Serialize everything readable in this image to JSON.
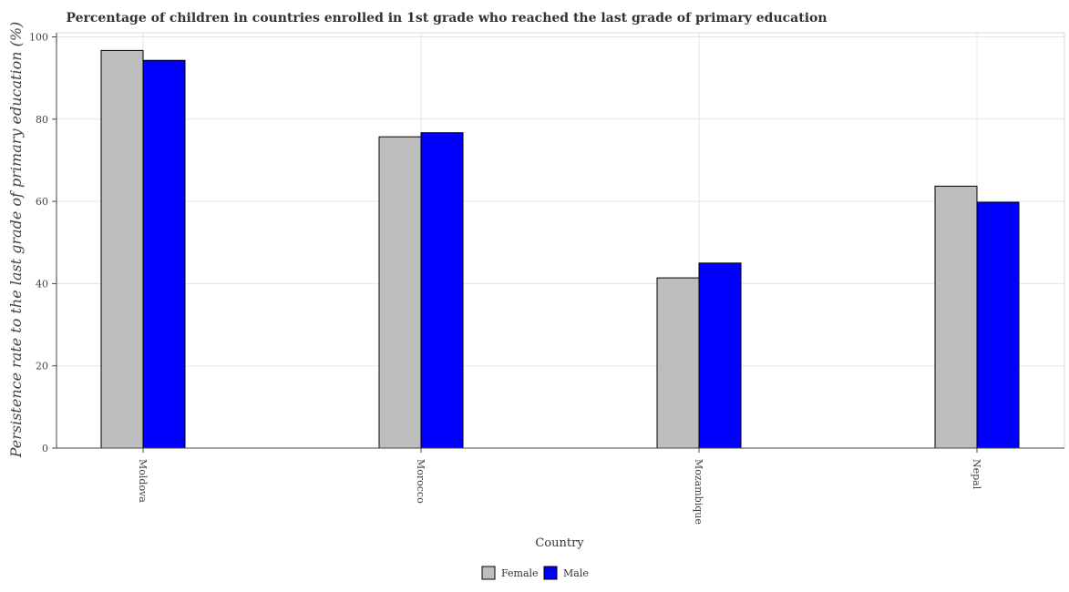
{
  "chart_data": {
    "type": "bar",
    "title": "Percentage of children in countries enrolled in 1st grade who reached the last grade of primary education",
    "xlabel": "Country",
    "ylabel": "Persistence rate to the last grade of primary education (%)",
    "categories": [
      "Moldova",
      "Morocco",
      "Mozambique",
      "Nepal"
    ],
    "series": [
      {
        "name": "Female",
        "color": "#bdbdbd",
        "values": [
          96.7,
          75.7,
          41.4,
          63.7
        ]
      },
      {
        "name": "Male",
        "color": "#0000ff",
        "values": [
          94.3,
          76.7,
          45.0,
          59.8
        ]
      }
    ],
    "ylim": [
      0,
      101
    ],
    "yticks": [
      0,
      20,
      40,
      60,
      80,
      100
    ],
    "grid": true,
    "legend_position": "bottom-center"
  }
}
